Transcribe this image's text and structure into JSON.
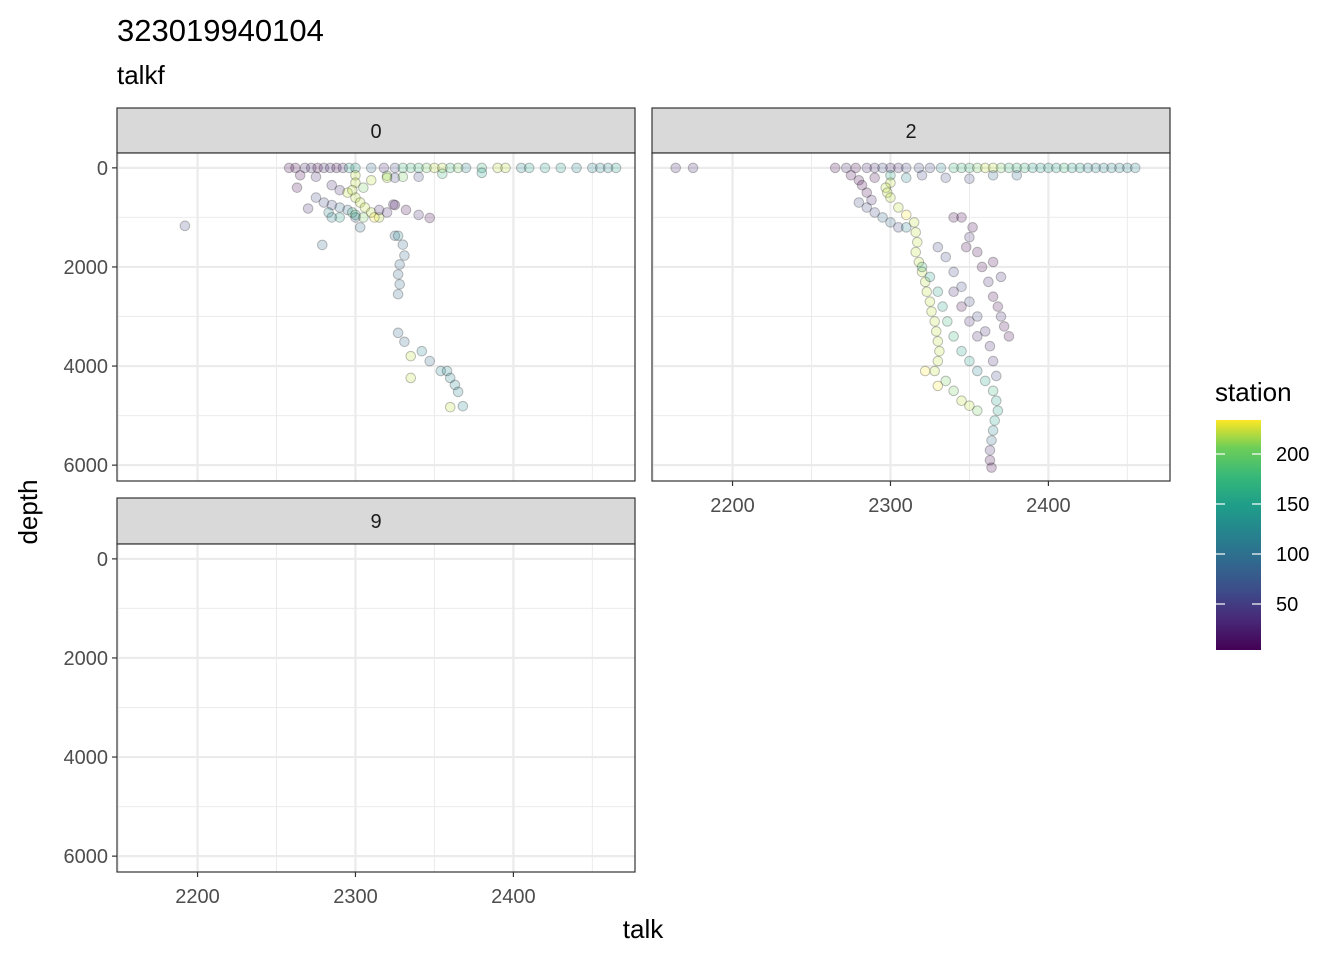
{
  "chart_data": {
    "type": "scatter",
    "title": "323019940104",
    "subtitle": "talkf",
    "xlabel": "talk",
    "ylabel": "depth",
    "xlim": [
      2149,
      2477
    ],
    "ylim": [
      6320,
      -300
    ],
    "y_reversed": true,
    "x_ticks": [
      2200,
      2300,
      2400
    ],
    "y_ticks": [
      0,
      2000,
      4000,
      6000
    ],
    "grid": true,
    "colormap": "viridis",
    "legend": {
      "title": "station",
      "placement": "right",
      "ticks": [
        50,
        100,
        150,
        200
      ],
      "range": [
        4,
        234
      ]
    },
    "point_columns": [
      "talk",
      "depth",
      "station"
    ],
    "facets": [
      {
        "label": "0",
        "points": [
          [
            2258,
            0,
            12
          ],
          [
            2262,
            0,
            15
          ],
          [
            2268,
            0,
            20
          ],
          [
            2272,
            0,
            18
          ],
          [
            2276,
            0,
            10
          ],
          [
            2280,
            0,
            22
          ],
          [
            2284,
            0,
            25
          ],
          [
            2288,
            0,
            15
          ],
          [
            2292,
            0,
            20
          ],
          [
            2296,
            0,
            130
          ],
          [
            2300,
            0,
            140
          ],
          [
            2310,
            0,
            70
          ],
          [
            2318,
            0,
            40
          ],
          [
            2325,
            0,
            60
          ],
          [
            2330,
            0,
            170
          ],
          [
            2335,
            0,
            150
          ],
          [
            2340,
            0,
            160
          ],
          [
            2345,
            0,
            180
          ],
          [
            2350,
            0,
            200
          ],
          [
            2355,
            0,
            210
          ],
          [
            2360,
            0,
            150
          ],
          [
            2365,
            0,
            190
          ],
          [
            2370,
            0,
            100
          ],
          [
            2380,
            0,
            150
          ],
          [
            2390,
            0,
            200
          ],
          [
            2395,
            0,
            215
          ],
          [
            2405,
            0,
            110
          ],
          [
            2410,
            0,
            130
          ],
          [
            2420,
            0,
            140
          ],
          [
            2430,
            0,
            120
          ],
          [
            2440,
            0,
            110
          ],
          [
            2450,
            0,
            105
          ],
          [
            2455,
            0,
            100
          ],
          [
            2460,
            0,
            110
          ],
          [
            2465,
            0,
            120
          ],
          [
            2265,
            150,
            15
          ],
          [
            2275,
            180,
            20
          ],
          [
            2300,
            150,
            200
          ],
          [
            2320,
            160,
            190
          ],
          [
            2340,
            180,
            60
          ],
          [
            2325,
            200,
            60
          ],
          [
            2355,
            120,
            170
          ],
          [
            2380,
            100,
            140
          ],
          [
            2263,
            400,
            15
          ],
          [
            2285,
            350,
            20
          ],
          [
            2290,
            450,
            30
          ],
          [
            2275,
            600,
            50
          ],
          [
            2280,
            700,
            60
          ],
          [
            2285,
            750,
            45
          ],
          [
            2290,
            800,
            70
          ],
          [
            2295,
            850,
            90
          ],
          [
            2298,
            900,
            150
          ],
          [
            2300,
            950,
            170
          ],
          [
            2305,
            1000,
            180
          ],
          [
            2295,
            500,
            200
          ],
          [
            2300,
            600,
            210
          ],
          [
            2303,
            700,
            205
          ],
          [
            2306,
            800,
            215
          ],
          [
            2310,
            900,
            220
          ],
          [
            2315,
            1000,
            210
          ],
          [
            2312,
            1000,
            225
          ],
          [
            2300,
            300,
            200
          ],
          [
            2305,
            400,
            195
          ],
          [
            2298,
            450,
            210
          ],
          [
            2310,
            250,
            205
          ],
          [
            2320,
            200,
            200
          ],
          [
            2330,
            180,
            190
          ],
          [
            2283,
            900,
            110
          ],
          [
            2290,
            1000,
            120
          ],
          [
            2300,
            1000,
            90
          ],
          [
            2315,
            850,
            20
          ],
          [
            2320,
            900,
            25
          ],
          [
            2325,
            750,
            15
          ],
          [
            2332,
            850,
            15
          ],
          [
            2340,
            950,
            20
          ],
          [
            2347,
            1010,
            15
          ],
          [
            2324,
            740,
            25
          ],
          [
            2303,
            1200,
            80
          ],
          [
            2270,
            820,
            40
          ],
          [
            2285,
            1000,
            100
          ],
          [
            2325,
            1370,
            80
          ],
          [
            2327,
            1370,
            95
          ],
          [
            2330,
            1550,
            90
          ],
          [
            2331,
            1770,
            85
          ],
          [
            2328,
            1950,
            80
          ],
          [
            2327,
            2150,
            80
          ],
          [
            2328,
            2350,
            80
          ],
          [
            2327,
            2550,
            85
          ],
          [
            2327,
            3330,
            85
          ],
          [
            2331,
            3510,
            90
          ],
          [
            2335,
            3800,
            215
          ],
          [
            2342,
            3700,
            95
          ],
          [
            2347,
            3900,
            90
          ],
          [
            2354,
            4100,
            100
          ],
          [
            2358,
            4100,
            110
          ],
          [
            2360,
            4240,
            105
          ],
          [
            2363,
            4380,
            110
          ],
          [
            2365,
            4520,
            95
          ],
          [
            2335,
            4240,
            210
          ],
          [
            2360,
            4830,
            215
          ],
          [
            2368,
            4810,
            100
          ],
          [
            2192,
            1170,
            60
          ],
          [
            2279,
            1555,
            70
          ]
        ]
      },
      {
        "label": "2",
        "points": [
          [
            2164,
            0,
            20
          ],
          [
            2175,
            0,
            25
          ],
          [
            2265,
            0,
            15
          ],
          [
            2272,
            0,
            20
          ],
          [
            2278,
            0,
            10
          ],
          [
            2285,
            0,
            30
          ],
          [
            2290,
            0,
            40
          ],
          [
            2295,
            0,
            45
          ],
          [
            2300,
            0,
            35
          ],
          [
            2305,
            0,
            40
          ],
          [
            2310,
            0,
            50
          ],
          [
            2318,
            0,
            60
          ],
          [
            2325,
            0,
            45
          ],
          [
            2332,
            0,
            100
          ],
          [
            2340,
            0,
            150
          ],
          [
            2345,
            0,
            160
          ],
          [
            2350,
            0,
            170
          ],
          [
            2355,
            0,
            180
          ],
          [
            2360,
            0,
            200
          ],
          [
            2365,
            0,
            210
          ],
          [
            2370,
            0,
            190
          ],
          [
            2375,
            0,
            160
          ],
          [
            2380,
            0,
            170
          ],
          [
            2385,
            0,
            150
          ],
          [
            2390,
            0,
            130
          ],
          [
            2395,
            0,
            140
          ],
          [
            2400,
            0,
            120
          ],
          [
            2405,
            0,
            130
          ],
          [
            2410,
            0,
            150
          ],
          [
            2415,
            0,
            140
          ],
          [
            2420,
            0,
            120
          ],
          [
            2425,
            0,
            115
          ],
          [
            2430,
            0,
            110
          ],
          [
            2435,
            0,
            105
          ],
          [
            2440,
            0,
            100
          ],
          [
            2445,
            0,
            110
          ],
          [
            2450,
            0,
            105
          ],
          [
            2455,
            0,
            100
          ],
          [
            2300,
            150,
            120
          ],
          [
            2310,
            200,
            110
          ],
          [
            2320,
            150,
            60
          ],
          [
            2335,
            200,
            50
          ],
          [
            2350,
            220,
            60
          ],
          [
            2365,
            150,
            80
          ],
          [
            2380,
            150,
            90
          ],
          [
            2290,
            200,
            15
          ],
          [
            2280,
            250,
            10
          ],
          [
            2275,
            150,
            5
          ],
          [
            2282,
            350,
            10
          ],
          [
            2285,
            500,
            15
          ],
          [
            2288,
            650,
            20
          ],
          [
            2280,
            700,
            50
          ],
          [
            2285,
            800,
            55
          ],
          [
            2290,
            900,
            60
          ],
          [
            2295,
            1000,
            70
          ],
          [
            2300,
            1100,
            80
          ],
          [
            2305,
            1200,
            60
          ],
          [
            2310,
            1200,
            100
          ],
          [
            2300,
            300,
            200
          ],
          [
            2297,
            400,
            210
          ],
          [
            2298,
            500,
            215
          ],
          [
            2300,
            600,
            220
          ],
          [
            2305,
            800,
            210
          ],
          [
            2310,
            950,
            225
          ],
          [
            2315,
            1100,
            200
          ],
          [
            2316,
            1300,
            215
          ],
          [
            2317,
            1500,
            210
          ],
          [
            2316,
            1700,
            220
          ],
          [
            2318,
            1900,
            205
          ],
          [
            2320,
            2100,
            215
          ],
          [
            2322,
            2300,
            200
          ],
          [
            2323,
            2500,
            210
          ],
          [
            2325,
            2700,
            220
          ],
          [
            2326,
            2900,
            215
          ],
          [
            2328,
            3100,
            210
          ],
          [
            2329,
            3300,
            200
          ],
          [
            2330,
            3500,
            205
          ],
          [
            2331,
            3700,
            215
          ],
          [
            2330,
            3900,
            210
          ],
          [
            2328,
            4100,
            200
          ],
          [
            2335,
            4300,
            190
          ],
          [
            2340,
            4500,
            195
          ],
          [
            2345,
            4700,
            200
          ],
          [
            2350,
            4800,
            210
          ],
          [
            2355,
            4900,
            190
          ],
          [
            2322,
            4100,
            230
          ],
          [
            2330,
            4400,
            225
          ],
          [
            2320,
            2000,
            150
          ],
          [
            2325,
            2200,
            140
          ],
          [
            2330,
            2500,
            130
          ],
          [
            2333,
            2800,
            120
          ],
          [
            2336,
            3100,
            160
          ],
          [
            2340,
            3400,
            150
          ],
          [
            2345,
            3700,
            140
          ],
          [
            2350,
            3900,
            130
          ],
          [
            2355,
            4100,
            110
          ],
          [
            2360,
            4300,
            140
          ],
          [
            2365,
            4500,
            150
          ],
          [
            2367,
            4700,
            140
          ],
          [
            2368,
            4900,
            130
          ],
          [
            2366,
            5100,
            120
          ],
          [
            2365,
            5300,
            100
          ],
          [
            2364,
            5500,
            90
          ],
          [
            2363,
            5700,
            20
          ],
          [
            2363,
            5900,
            15
          ],
          [
            2364,
            6050,
            10
          ],
          [
            2330,
            1600,
            60
          ],
          [
            2335,
            1800,
            55
          ],
          [
            2340,
            2100,
            50
          ],
          [
            2345,
            2400,
            45
          ],
          [
            2350,
            2700,
            60
          ],
          [
            2355,
            3000,
            55
          ],
          [
            2360,
            3300,
            40
          ],
          [
            2363,
            3600,
            35
          ],
          [
            2365,
            3900,
            40
          ],
          [
            2367,
            4200,
            45
          ],
          [
            2340,
            1000,
            15
          ],
          [
            2345,
            1000,
            10
          ],
          [
            2350,
            1400,
            20
          ],
          [
            2355,
            1700,
            15
          ],
          [
            2358,
            2000,
            10
          ],
          [
            2362,
            2300,
            20
          ],
          [
            2365,
            2600,
            15
          ],
          [
            2368,
            2800,
            10
          ],
          [
            2370,
            3000,
            20
          ],
          [
            2372,
            3200,
            15
          ],
          [
            2340,
            2500,
            20
          ],
          [
            2345,
            2800,
            15
          ],
          [
            2350,
            3100,
            25
          ],
          [
            2355,
            3400,
            20
          ],
          [
            2348,
            1600,
            10
          ],
          [
            2352,
            1200,
            15
          ],
          [
            2370,
            2200,
            20
          ],
          [
            2365,
            1900,
            15
          ],
          [
            2375,
            3400,
            10
          ]
        ]
      },
      {
        "label": "9",
        "points": []
      }
    ]
  }
}
